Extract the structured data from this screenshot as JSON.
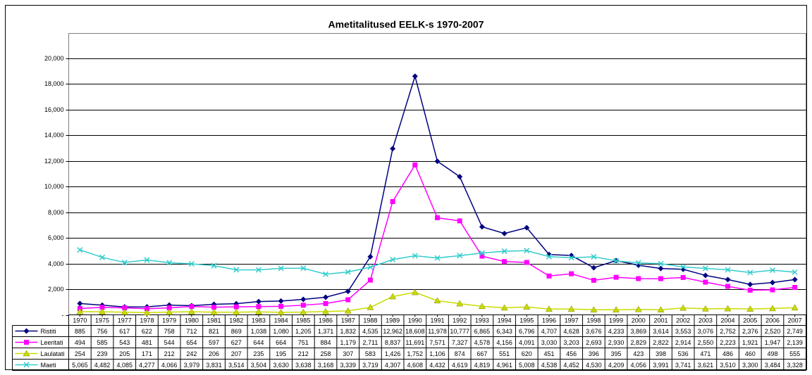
{
  "chart_data": {
    "type": "line",
    "title": "Ametitalitused EELK-s 1970-2007",
    "categories": [
      "1970",
      "1975",
      "1977",
      "1978",
      "1979",
      "1980",
      "1981",
      "1982",
      "1983",
      "1984",
      "1985",
      "1986",
      "1987",
      "1988",
      "1989",
      "1990",
      "1991",
      "1992",
      "1993",
      "1994",
      "1995",
      "1996",
      "1997",
      "1998",
      "1999",
      "2000",
      "2001",
      "2002",
      "2003",
      "2004",
      "2005",
      "2006",
      "2007"
    ],
    "series": [
      {
        "name": "Ristiti",
        "color": "#000080",
        "marker": "diamond",
        "values": [
          885,
          756,
          617,
          622,
          758,
          712,
          821,
          869,
          1038,
          1080,
          1205,
          1371,
          1832,
          4535,
          12962,
          18608,
          11978,
          10777,
          6865,
          6343,
          6796,
          4707,
          4628,
          3676,
          4233,
          3869,
          3614,
          3553,
          3076,
          2752,
          2376,
          2520,
          2749
        ],
        "value_labels": [
          "885",
          "756",
          "617",
          "622",
          "758",
          "712",
          "821",
          "869",
          "1,038",
          "1,080",
          "1,205",
          "1,371",
          "1,832",
          "4,535",
          "12,962",
          "18,608",
          "11,978",
          "10,777",
          "6,865",
          "6,343",
          "6,796",
          "4,707",
          "4,628",
          "3,676",
          "4,233",
          "3,869",
          "3,614",
          "3,553",
          "3,076",
          "2,752",
          "2,376",
          "2,520",
          "2,749"
        ]
      },
      {
        "name": "Leeritati",
        "color": "#ff00ff",
        "marker": "square",
        "values": [
          494,
          585,
          543,
          481,
          544,
          654,
          597,
          627,
          644,
          664,
          751,
          884,
          1179,
          2711,
          8837,
          11691,
          7571,
          7327,
          4578,
          4156,
          4091,
          3030,
          3203,
          2693,
          2930,
          2829,
          2822,
          2914,
          2550,
          2223,
          1921,
          1947,
          2139
        ],
        "value_labels": [
          "494",
          "585",
          "543",
          "481",
          "544",
          "654",
          "597",
          "627",
          "644",
          "664",
          "751",
          "884",
          "1,179",
          "2,711",
          "8,837",
          "11,691",
          "7,571",
          "7,327",
          "4,578",
          "4,156",
          "4,091",
          "3,030",
          "3,203",
          "2,693",
          "2,930",
          "2,829",
          "2,822",
          "2,914",
          "2,550",
          "2,223",
          "1,921",
          "1,947",
          "2,139"
        ]
      },
      {
        "name": "Laulatati",
        "color": "#c8dc00",
        "marker": "triangle",
        "values": [
          254,
          239,
          205,
          171,
          212,
          242,
          206,
          207,
          235,
          195,
          212,
          258,
          307,
          583,
          1426,
          1752,
          1106,
          874,
          667,
          551,
          620,
          451,
          456,
          396,
          395,
          423,
          398,
          536,
          471,
          486,
          460,
          498,
          555
        ],
        "value_labels": [
          "254",
          "239",
          "205",
          "171",
          "212",
          "242",
          "206",
          "207",
          "235",
          "195",
          "212",
          "258",
          "307",
          "583",
          "1,426",
          "1,752",
          "1,106",
          "874",
          "667",
          "551",
          "620",
          "451",
          "456",
          "396",
          "395",
          "423",
          "398",
          "536",
          "471",
          "486",
          "460",
          "498",
          "555"
        ]
      },
      {
        "name": "Maeti",
        "color": "#33cccc",
        "marker": "x",
        "values": [
          5065,
          4482,
          4085,
          4277,
          4066,
          3979,
          3831,
          3514,
          3504,
          3630,
          3638,
          3168,
          3339,
          3719,
          4307,
          4608,
          4432,
          4619,
          4819,
          4961,
          5008,
          4538,
          4452,
          4530,
          4209,
          4056,
          3991,
          3741,
          3621,
          3510,
          3300,
          3484,
          3328
        ],
        "value_labels": [
          "5,065",
          "4,482",
          "4,085",
          "4,277",
          "4,066",
          "3,979",
          "3,831",
          "3,514",
          "3,504",
          "3,630",
          "3,638",
          "3,168",
          "3,339",
          "3,719",
          "4,307",
          "4,608",
          "4,432",
          "4,619",
          "4,819",
          "4,961",
          "5,008",
          "4,538",
          "4,452",
          "4,530",
          "4,209",
          "4,056",
          "3,991",
          "3,741",
          "3,621",
          "3,510",
          "3,300",
          "3,484",
          "3,328"
        ]
      }
    ],
    "ylim": [
      0,
      20000
    ],
    "yticks": [
      {
        "value": 0,
        "label": "-"
      },
      {
        "value": 2000,
        "label": "2,000"
      },
      {
        "value": 4000,
        "label": "4,000"
      },
      {
        "value": 6000,
        "label": "6,000"
      },
      {
        "value": 8000,
        "label": "8,000"
      },
      {
        "value": 10000,
        "label": "10,000"
      },
      {
        "value": 12000,
        "label": "12,000"
      },
      {
        "value": 14000,
        "label": "14,000"
      },
      {
        "value": 16000,
        "label": "16,000"
      },
      {
        "value": 18000,
        "label": "18,000"
      },
      {
        "value": 20000,
        "label": "20,000"
      }
    ],
    "grid": true
  }
}
